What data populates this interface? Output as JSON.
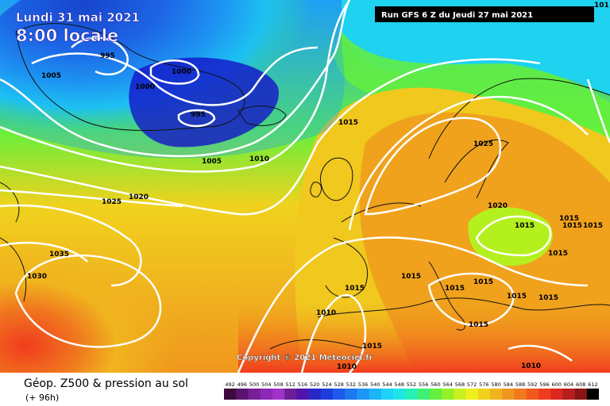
{
  "overlay": {
    "date": "Lundi 31 mai 2021",
    "local_time": "8:00 locale",
    "run_info": "Run GFS 6 Z du Jeudi 27 mai 2021",
    "corner_label": "101",
    "copyright": "Copyright © 2021 Meteociel.fr"
  },
  "footer": {
    "title": "Géop. Z500 & pression au sol",
    "subtitle": "(+ 96h)"
  },
  "legend_values": [
    "492",
    "496",
    "500",
    "504",
    "508",
    "512",
    "516",
    "520",
    "524",
    "528",
    "532",
    "536",
    "540",
    "544",
    "548",
    "552",
    "556",
    "560",
    "564",
    "568",
    "572",
    "576",
    "580",
    "584",
    "588",
    "592",
    "596",
    "600",
    "604",
    "608",
    "612"
  ],
  "legend_colors": [
    "#3c0a3c",
    "#5a146e",
    "#781e96",
    "#8c28b4",
    "#a032c8",
    "#6e1e96",
    "#5014aa",
    "#2828c8",
    "#1e3cdc",
    "#1e5aeb",
    "#1e78f0",
    "#1e96f5",
    "#1eb4fa",
    "#1ed2fa",
    "#1ee6e6",
    "#28f0b4",
    "#3cf078",
    "#64f03c",
    "#96f028",
    "#c8f01e",
    "#f0f01e",
    "#f0d21e",
    "#f0b41e",
    "#f0961e",
    "#f0781e",
    "#f05a1e",
    "#f03c1e",
    "#dc281e",
    "#b41e1e",
    "#8c1414",
    "#000000"
  ],
  "isobar_labels": [
    "995",
    "1005",
    "1000",
    "1000",
    "995",
    "1005",
    "1010",
    "1015",
    "1025",
    "1020",
    "1025",
    "1020",
    "1035",
    "1030",
    "1015",
    "1010",
    "1015",
    "1015",
    "1015",
    "1015",
    "1015",
    "1015",
    "1015",
    "1015",
    "1015",
    "1015",
    "1015",
    "1015",
    "1010",
    "1010"
  ]
}
